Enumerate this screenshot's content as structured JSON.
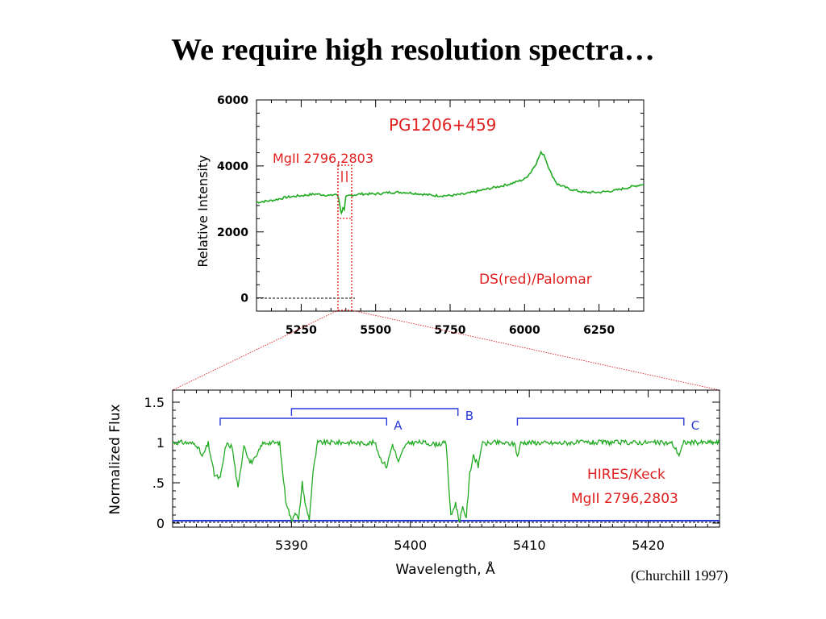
{
  "slide": {
    "title": "We require high resolution spectra…",
    "citation": "(Churchill 1997)"
  },
  "colors": {
    "spectrum": "#22aa22",
    "annotation_red": "#e02020",
    "annotation_blue": "#2a3ad8",
    "axis": "#000000"
  },
  "chart_data": [
    {
      "type": "line",
      "annotations": {
        "object": "PG1206+459",
        "line_id": "MgII 2796,2803",
        "instrument": "DS(red)/Palomar"
      },
      "xlabel": "",
      "ylabel": "Relative Intensity",
      "xlim": [
        5100,
        6400
      ],
      "ylim": [
        -400,
        6000
      ],
      "x_ticks": [
        5250,
        5500,
        5750,
        6000,
        6250
      ],
      "y_ticks": [
        0,
        2000,
        4000,
        6000
      ],
      "zoom_region": [
        5365,
        5405
      ],
      "series": [
        {
          "x": [
            5100,
            5150,
            5200,
            5250,
            5300,
            5350,
            5365,
            5375,
            5380,
            5385,
            5390,
            5395,
            5400,
            5410,
            5450,
            5500,
            5550,
            5600,
            5650,
            5700,
            5750,
            5800,
            5850,
            5900,
            5950,
            6000,
            6020,
            6040,
            6055,
            6065,
            6075,
            6090,
            6110,
            6150,
            6200,
            6250,
            6300,
            6350,
            6400
          ],
          "y": [
            2900,
            2950,
            3050,
            3100,
            3150,
            3100,
            3150,
            3050,
            2800,
            2550,
            2750,
            2650,
            3050,
            3100,
            3150,
            3150,
            3200,
            3200,
            3150,
            3100,
            3100,
            3150,
            3250,
            3350,
            3450,
            3600,
            3800,
            4100,
            4400,
            4350,
            4100,
            3750,
            3450,
            3300,
            3200,
            3200,
            3250,
            3350,
            3450
          ]
        }
      ]
    },
    {
      "type": "line",
      "annotations": {
        "instrument": "HIRES/Keck",
        "line_id": "MgII 2796,2803",
        "systems": [
          {
            "label": "A",
            "x_start": 5384,
            "x_end": 5398
          },
          {
            "label": "B",
            "x_start": 5390,
            "x_end": 5404
          },
          {
            "label": "C",
            "x_start": 5409,
            "x_end": 5423
          }
        ]
      },
      "xlabel": "Wavelength, Å",
      "ylabel": "Normalized Flux",
      "xlim": [
        5380,
        5426
      ],
      "ylim": [
        -0.05,
        1.65
      ],
      "x_ticks": [
        5390,
        5400,
        5410,
        5420
      ],
      "y_ticks": [
        0,
        0.5,
        1,
        1.5
      ],
      "y_tick_labels": [
        "0",
        ".5",
        "1",
        "1.5"
      ],
      "series": [
        {
          "name": "flux",
          "x": [
            5380,
            5381,
            5382,
            5382.5,
            5383,
            5383.5,
            5384,
            5384.5,
            5385,
            5385.5,
            5386,
            5386.5,
            5387,
            5387.5,
            5388,
            5389,
            5389.5,
            5390,
            5390.3,
            5390.6,
            5390.9,
            5391.2,
            5391.5,
            5391.8,
            5392.2,
            5393,
            5394,
            5395,
            5396,
            5397,
            5397.5,
            5398,
            5398.5,
            5399,
            5399.5,
            5400,
            5401,
            5402,
            5403,
            5403.4,
            5403.8,
            5404.1,
            5404.4,
            5404.7,
            5405,
            5405.3,
            5405.7,
            5406,
            5407,
            5408,
            5408.8,
            5409,
            5409.3,
            5410,
            5412,
            5414,
            5416,
            5418,
            5420,
            5422,
            5422.6,
            5423,
            5424,
            5426
          ],
          "y": [
            1.0,
            1.0,
            0.98,
            0.82,
            0.99,
            0.6,
            0.55,
            0.98,
            0.95,
            0.42,
            0.98,
            0.75,
            0.8,
            0.98,
            1.0,
            0.99,
            0.3,
            0.02,
            0.15,
            0.03,
            0.5,
            0.2,
            0.05,
            0.62,
            1.0,
            1.0,
            1.0,
            1.0,
            0.99,
            1.0,
            0.8,
            0.7,
            0.98,
            0.75,
            0.95,
            1.0,
            1.0,
            0.98,
            0.99,
            0.08,
            0.25,
            0.03,
            0.18,
            0.08,
            0.62,
            0.85,
            0.7,
            0.98,
            1.0,
            0.99,
            0.98,
            0.82,
            1.0,
            1.0,
            0.99,
            1.0,
            1.0,
            1.0,
            1.0,
            0.99,
            0.85,
            1.0,
            1.0,
            1.0
          ]
        },
        {
          "name": "error",
          "x": [
            5380,
            5426
          ],
          "y": [
            0.03,
            0.03
          ]
        }
      ]
    }
  ]
}
